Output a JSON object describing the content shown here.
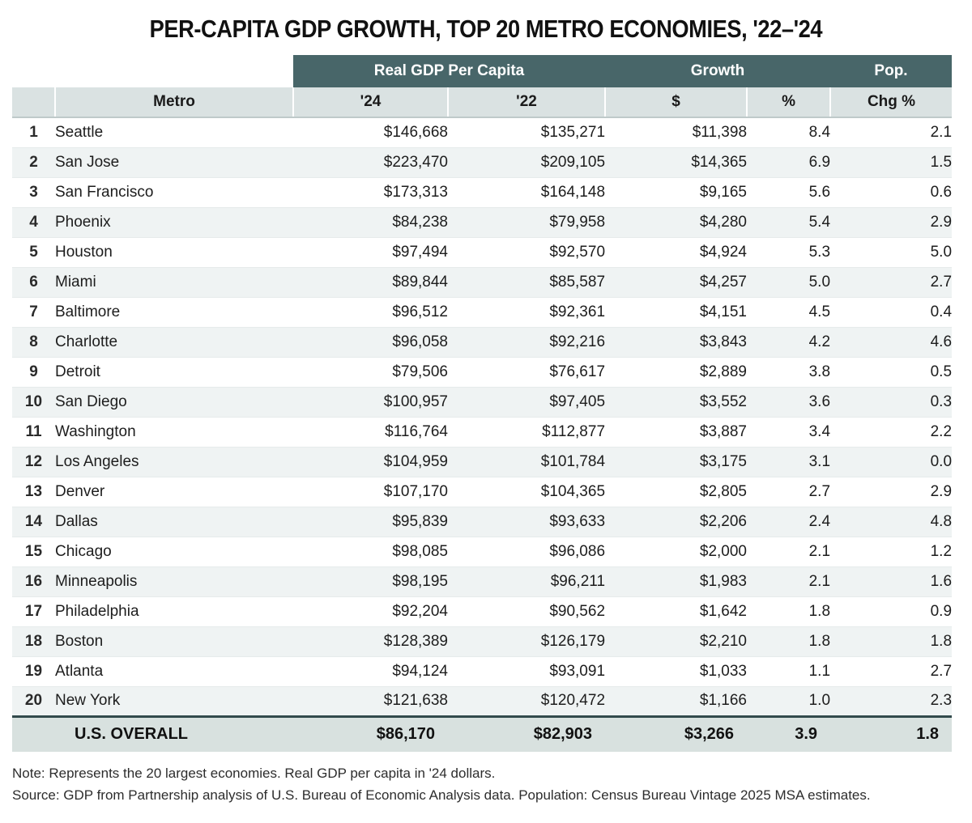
{
  "title": "PER-CAPITA GDP GROWTH, TOP 20 METRO ECONOMIES, '22–'24",
  "colors": {
    "band_teal": "#486669",
    "band_text": "#ffffff",
    "header_row_bg": "#dae2e2",
    "stripe_bg": "#eff3f3",
    "overall_row_bg": "#d8e1df",
    "overall_top_border": "#324a4c"
  },
  "chart_data": {
    "type": "table",
    "title": "PER-CAPITA GDP GROWTH, TOP 20 METRO ECONOMIES, '22–'24",
    "column_groups": [
      {
        "label": "Real GDP Per Capita",
        "spans_columns": [
          "'24",
          "'22"
        ]
      },
      {
        "label": "Growth",
        "spans_columns": [
          "$",
          "%"
        ]
      },
      {
        "label": "Pop.",
        "spans_columns": [
          "Chg %"
        ]
      }
    ],
    "header_row": [
      "",
      "Metro",
      "'24",
      "'22",
      "$",
      "%",
      "Chg %"
    ],
    "rows": [
      [
        "1",
        "Seattle",
        "$146,668",
        "$135,271",
        "$11,398",
        "8.4",
        "2.1"
      ],
      [
        "2",
        "San Jose",
        "$223,470",
        "$209,105",
        "$14,365",
        "6.9",
        "1.5"
      ],
      [
        "3",
        "San Francisco",
        "$173,313",
        "$164,148",
        "$9,165",
        "5.6",
        "0.6"
      ],
      [
        "4",
        "Phoenix",
        "$84,238",
        "$79,958",
        "$4,280",
        "5.4",
        "2.9"
      ],
      [
        "5",
        "Houston",
        "$97,494",
        "$92,570",
        "$4,924",
        "5.3",
        "5.0"
      ],
      [
        "6",
        "Miami",
        "$89,844",
        "$85,587",
        "$4,257",
        "5.0",
        "2.7"
      ],
      [
        "7",
        "Baltimore",
        "$96,512",
        "$92,361",
        "$4,151",
        "4.5",
        "0.4"
      ],
      [
        "8",
        "Charlotte",
        "$96,058",
        "$92,216",
        "$3,843",
        "4.2",
        "4.6"
      ],
      [
        "9",
        "Detroit",
        "$79,506",
        "$76,617",
        "$2,889",
        "3.8",
        "0.5"
      ],
      [
        "10",
        "San Diego",
        "$100,957",
        "$97,405",
        "$3,552",
        "3.6",
        "0.3"
      ],
      [
        "11",
        "Washington",
        "$116,764",
        "$112,877",
        "$3,887",
        "3.4",
        "2.2"
      ],
      [
        "12",
        "Los Angeles",
        "$104,959",
        "$101,784",
        "$3,175",
        "3.1",
        "0.0"
      ],
      [
        "13",
        "Denver",
        "$107,170",
        "$104,365",
        "$2,805",
        "2.7",
        "2.9"
      ],
      [
        "14",
        "Dallas",
        "$95,839",
        "$93,633",
        "$2,206",
        "2.4",
        "4.8"
      ],
      [
        "15",
        "Chicago",
        "$98,085",
        "$96,086",
        "$2,000",
        "2.1",
        "1.2"
      ],
      [
        "16",
        "Minneapolis",
        "$98,195",
        "$96,211",
        "$1,983",
        "2.1",
        "1.6"
      ],
      [
        "17",
        "Philadelphia",
        "$92,204",
        "$90,562",
        "$1,642",
        "1.8",
        "0.9"
      ],
      [
        "18",
        "Boston",
        "$128,389",
        "$126,179",
        "$2,210",
        "1.8",
        "1.8"
      ],
      [
        "19",
        "Atlanta",
        "$94,124",
        "$93,091",
        "$1,033",
        "1.1",
        "2.7"
      ],
      [
        "20",
        "New York",
        "$121,638",
        "$120,472",
        "$1,166",
        "1.0",
        "2.3"
      ]
    ],
    "overall_row": [
      "",
      "U.S. OVERALL",
      "$86,170",
      "$82,903",
      "$3,266",
      "3.9",
      "1.8"
    ]
  },
  "notes": {
    "note": "Note: Represents the 20 largest economies. Real GDP per capita in '24 dollars.",
    "source": "Source: GDP from Partnership analysis of U.S. Bureau of Economic Analysis data. Population: Census Bureau Vintage 2025 MSA estimates."
  }
}
